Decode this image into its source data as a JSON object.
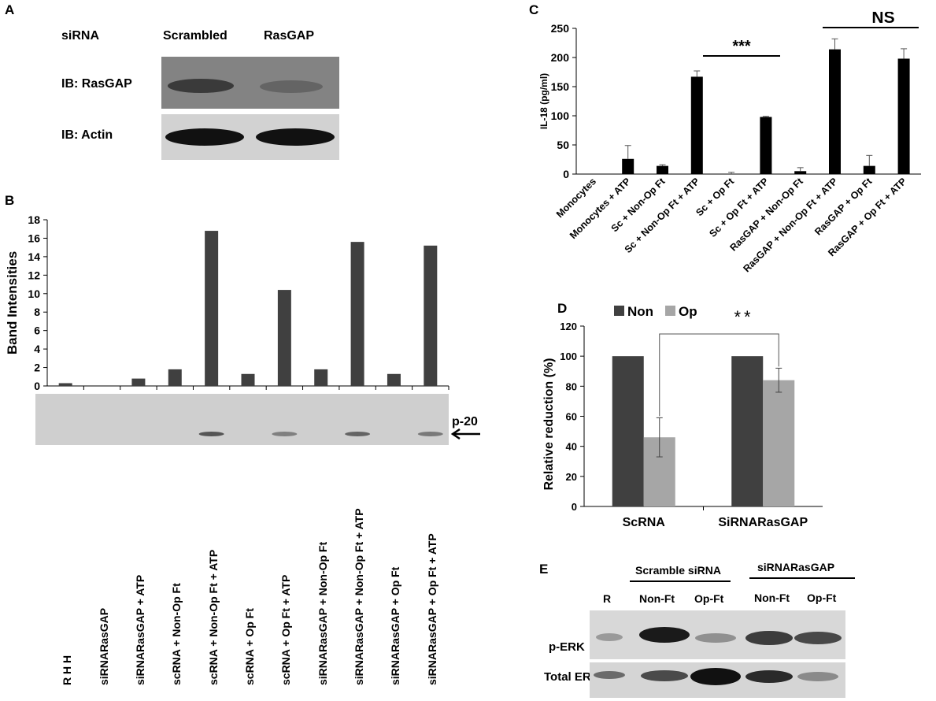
{
  "panelA": {
    "letter": "A",
    "sirna_label": "siRNA",
    "col1": "Scrambled",
    "col2": "RasGAP",
    "row1_label": "IB: RasGAP",
    "row2_label": "IB: Actin"
  },
  "panelB": {
    "letter": "B",
    "band_marker": "p-20",
    "arrow_icon": "left-arrow-icon",
    "band_strength": [
      0,
      0,
      0,
      0.85,
      0,
      0.55,
      0,
      0.75,
      0,
      0.6
    ],
    "band_color": "#404040",
    "xlabels": [
      "R H H",
      "siRNARasGAP",
      "siRNARasGAP + ATP",
      "scRNA + Non-Op Ft",
      "scRNA + Non-Op Ft + ATP",
      "scRNA + Op Ft",
      "scRNA + Op Ft + ATP",
      "siRNARasGAP + Non-Op Ft",
      "siRNARasGAP + Non-Op Ft + ATP",
      "siRNARasGAP + Op Ft",
      "siRNARasGAP + Op Ft + ATP"
    ],
    "chart_data": {
      "type": "bar",
      "categories": [
        "R H H",
        "siRNARasGAP",
        "siRNARasGAP + ATP",
        "scRNA + Non-Op Ft",
        "scRNA + Non-Op Ft + ATP",
        "scRNA + Op Ft",
        "scRNA + Op Ft + ATP",
        "siRNARasGAP + Non-Op Ft",
        "siRNARasGAP + Non-Op Ft + ATP",
        "siRNARasGAP + Op Ft",
        "siRNARasGAP + Op Ft + ATP"
      ],
      "values": [
        0.3,
        0,
        0.8,
        1.8,
        16.8,
        1.3,
        10.4,
        1.8,
        15.6,
        1.3,
        15.2
      ],
      "ylabel": "Band Intensities",
      "ylim": [
        0,
        18
      ],
      "yticks": [
        0,
        2,
        4,
        6,
        8,
        10,
        12,
        14,
        16,
        18
      ],
      "ytick_labels": [
        "0",
        "2",
        "4",
        "6",
        "8",
        "10",
        "12",
        "14",
        "16",
        "18"
      ],
      "color": "#404040"
    }
  },
  "panelC": {
    "letter": "C",
    "sig_label": "***",
    "ns_label": "NS",
    "chart_data": {
      "type": "bar",
      "categories": [
        "Monocytes",
        "Monocytes + ATP",
        "Sc + Non-Op Ft",
        "Sc + Non-Op Ft + ATP",
        "Sc + Op Ft",
        "Sc + Op Ft + ATP",
        "RasGAP + Non-Op Ft",
        "RasGAP + Non-Op Ft + ATP",
        "RasGAP + Op Ft",
        "RasGAP + Op Ft + ATP"
      ],
      "values": [
        0,
        26,
        14,
        167,
        0,
        98,
        5,
        214,
        14,
        198
      ],
      "errors": [
        0,
        23,
        2,
        10,
        3,
        1,
        6,
        18,
        18,
        17
      ],
      "ylabel": "IL-18 (pg/ml)",
      "ylim": [
        0,
        250
      ],
      "yticks": [
        0,
        50,
        100,
        150,
        200,
        250
      ],
      "ytick_labels": [
        "0",
        "50",
        "100",
        "150",
        "200",
        "250"
      ],
      "color": "#000000"
    }
  },
  "panelD": {
    "letter": "D",
    "sig_label": "**",
    "chart_data": {
      "type": "bar",
      "categories": [
        "ScRNA",
        "SiRNARasGAP"
      ],
      "series": [
        {
          "name": "Non",
          "values": [
            100,
            100
          ],
          "errors": [
            0,
            0
          ],
          "color": "#404040"
        },
        {
          "name": "Op",
          "values": [
            46,
            84
          ],
          "errors": [
            13,
            8
          ],
          "color": "#a6a6a6"
        }
      ],
      "ylabel": "Relative reduction (%)",
      "ylim": [
        0,
        120
      ],
      "yticks": [
        0,
        20,
        40,
        60,
        80,
        100,
        120
      ],
      "ytick_labels": [
        "0",
        "20",
        "40",
        "60",
        "80",
        "100",
        "120"
      ],
      "legend": "top-left"
    }
  },
  "panelE": {
    "letter": "E",
    "group1": "Scramble siRNA",
    "group2": "siRNARasGAP",
    "lanes": [
      "R",
      "Non-Ft",
      "Op-Ft",
      "Non-Ft",
      "Op-Ft"
    ],
    "row1_label": "p-ERK",
    "row2_label": "Total ERK"
  }
}
